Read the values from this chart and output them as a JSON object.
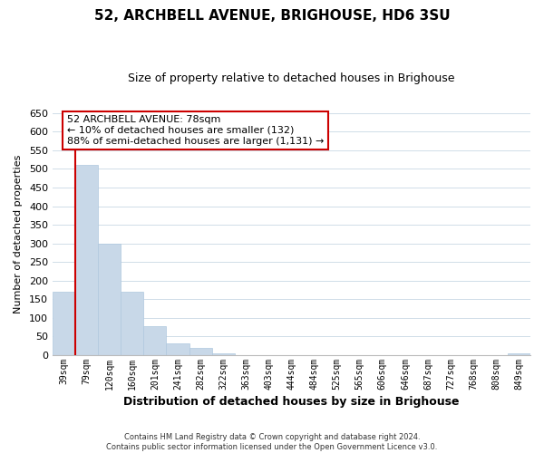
{
  "title": "52, ARCHBELL AVENUE, BRIGHOUSE, HD6 3SU",
  "subtitle": "Size of property relative to detached houses in Brighouse",
  "xlabel": "Distribution of detached houses by size in Brighouse",
  "ylabel": "Number of detached properties",
  "bar_labels": [
    "39sqm",
    "79sqm",
    "120sqm",
    "160sqm",
    "201sqm",
    "241sqm",
    "282sqm",
    "322sqm",
    "363sqm",
    "403sqm",
    "444sqm",
    "484sqm",
    "525sqm",
    "565sqm",
    "606sqm",
    "646sqm",
    "687sqm",
    "727sqm",
    "768sqm",
    "808sqm",
    "849sqm"
  ],
  "bar_values": [
    170,
    510,
    300,
    170,
    78,
    32,
    20,
    5,
    0,
    0,
    0,
    0,
    0,
    0,
    0,
    0,
    0,
    0,
    0,
    0,
    5
  ],
  "bar_color": "#c8d8e8",
  "bar_edge_color": "#afc8de",
  "ylim": [
    0,
    650
  ],
  "yticks": [
    0,
    50,
    100,
    150,
    200,
    250,
    300,
    350,
    400,
    450,
    500,
    550,
    600,
    650
  ],
  "marker_color": "#cc0000",
  "annotation_title": "52 ARCHBELL AVENUE: 78sqm",
  "annotation_line1": "← 10% of detached houses are smaller (132)",
  "annotation_line2": "88% of semi-detached houses are larger (1,131) →",
  "annotation_box_color": "#ffffff",
  "annotation_box_edge": "#cc0000",
  "footer_line1": "Contains HM Land Registry data © Crown copyright and database right 2024.",
  "footer_line2": "Contains public sector information licensed under the Open Government Licence v3.0.",
  "background_color": "#ffffff",
  "grid_color": "#d0dde8"
}
